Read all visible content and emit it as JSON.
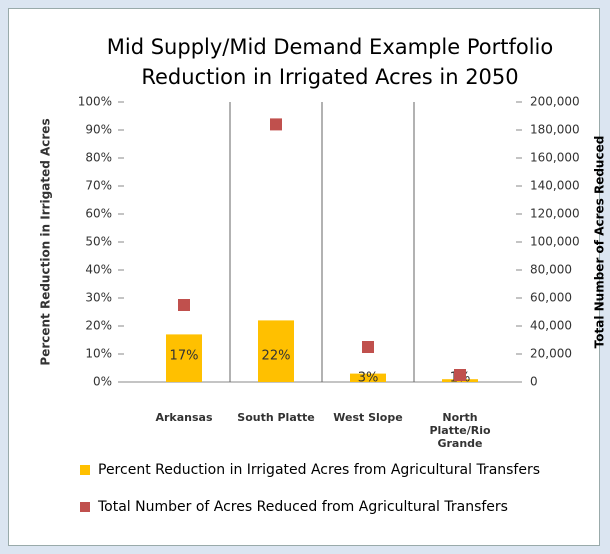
{
  "chart_data": {
    "type": "bar",
    "title": [
      "Mid Supply/Mid Demand Example Portfolio",
      "Reduction in Irrigated Acres in 2050"
    ],
    "categories": [
      "Arkansas",
      "South Platte",
      "West Slope",
      "North Platte/Rio Grande"
    ],
    "series": [
      {
        "name": "Percent Reduction in Irrigated Acres  from Agricultural Transfers",
        "type": "bar",
        "color": "#ffc000",
        "values": [
          17,
          22,
          3,
          1
        ],
        "value_labels": [
          "17%",
          "22%",
          "3%",
          "1%"
        ]
      },
      {
        "name": "Total Number of Acres Reduced from Agricultural Transfers",
        "type": "scatter",
        "axis": "y2",
        "color": "#c0504d",
        "values": [
          55000,
          184000,
          25000,
          5000
        ]
      }
    ],
    "ylabel": "Percent Reduction in Irrigated Acres",
    "y2label": "Total Number of Acres Reduced",
    "ylim": [
      0,
      100
    ],
    "yticks": [
      {
        "value": 0,
        "label": "0%"
      },
      {
        "value": 10,
        "label": "10%"
      },
      {
        "value": 20,
        "label": "20%"
      },
      {
        "value": 30,
        "label": "30%"
      },
      {
        "value": 40,
        "label": "40%"
      },
      {
        "value": 50,
        "label": "50%"
      },
      {
        "value": 60,
        "label": "60%"
      },
      {
        "value": 70,
        "label": "70%"
      },
      {
        "value": 80,
        "label": "80%"
      },
      {
        "value": 90,
        "label": "90%"
      },
      {
        "value": 100,
        "label": "100%"
      }
    ],
    "y2lim": [
      0,
      200000
    ],
    "y2ticks": [
      0,
      {
        "value": 20000,
        "label": "20,000"
      },
      {
        "value": 40000,
        "label": "40,000"
      },
      {
        "value": 60000,
        "label": "60,000"
      },
      {
        "value": 80000,
        "label": "80,000"
      },
      {
        "value": 100000,
        "label": "100,000"
      },
      {
        "value": 120000,
        "label": "120,000"
      },
      {
        "value": 140000,
        "label": "140,000"
      },
      {
        "value": 160000,
        "label": "160,000"
      },
      {
        "value": 180000,
        "label": "180,000"
      },
      {
        "value": 200000,
        "label": "200,000"
      }
    ],
    "legend": "bottom"
  }
}
